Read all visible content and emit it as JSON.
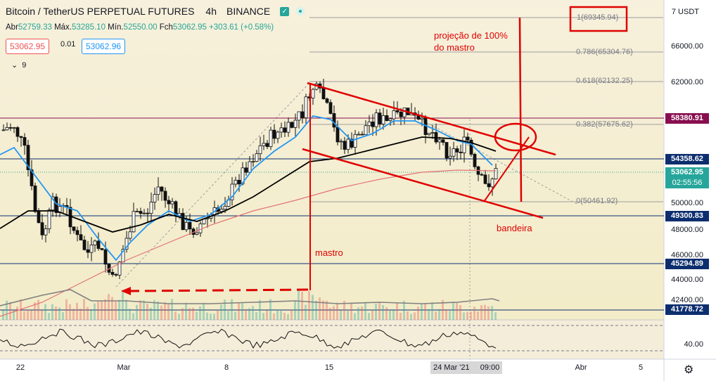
{
  "header": {
    "symbol_title": "Bitcoin / TetherUS PERPETUAL FUTURES",
    "interval": "4h",
    "exchange": "BINANCE",
    "status_color": "#26a69a"
  },
  "ohlc": {
    "open_label": "Abr",
    "open": "52759.33",
    "high_label": "Máx.",
    "high": "53285.10",
    "low_label": "Mín.",
    "low": "52550.00",
    "close_label": "Fch",
    "close": "53062.95",
    "change": "+303.61 (+0.58%)"
  },
  "trade_buttons": {
    "sell": "53062.95",
    "spread": "0.01",
    "buy": "53062.96"
  },
  "indicators": {
    "collapsed_count": "9"
  },
  "annotations": {
    "projection": "projeção de 100%\ndo mastro",
    "mastro": "mastro",
    "bandeira": "bandeira"
  },
  "fibonacci": [
    {
      "label": "1(69345.94)"
    },
    {
      "label": "0.786(65304.76)"
    },
    {
      "label": "0.618(62132.25)"
    },
    {
      "label": "0.382(57675.62)"
    },
    {
      "label": "0(50461.92)"
    }
  ],
  "price_axis": {
    "currency": "USDT",
    "top_tick": "7",
    "ticks": [
      "66000.00",
      "62000.00",
      "50000.00",
      "48000.00",
      "46000.00",
      "44000.00",
      "42400.00",
      "40.00"
    ],
    "badges": [
      {
        "label": "58380.91",
        "color": "#880e4f"
      },
      {
        "label": "54358.62",
        "color": "#0d2e6e"
      },
      {
        "label": "53062.95",
        "color": "#26a69a"
      },
      {
        "label": "02:55:56",
        "color": "#26a69a"
      },
      {
        "label": "49300.83",
        "color": "#0d2e6e"
      },
      {
        "label": "45294.89",
        "color": "#0d2e6e"
      },
      {
        "label": "41778.72",
        "color": "#0d2e6e"
      }
    ]
  },
  "time_axis": {
    "labels": [
      "22",
      "Mar",
      "8",
      "15",
      "Abr",
      "5"
    ],
    "crosshair_date": "24 Mar '21",
    "crosshair_time": "09:00"
  },
  "colors": {
    "accent_red": "#e00000",
    "ema_blue": "#2196f3",
    "ma_black": "#000000",
    "ma_red": "#e57373",
    "up": "#26a69a",
    "down": "#ef5350"
  }
}
